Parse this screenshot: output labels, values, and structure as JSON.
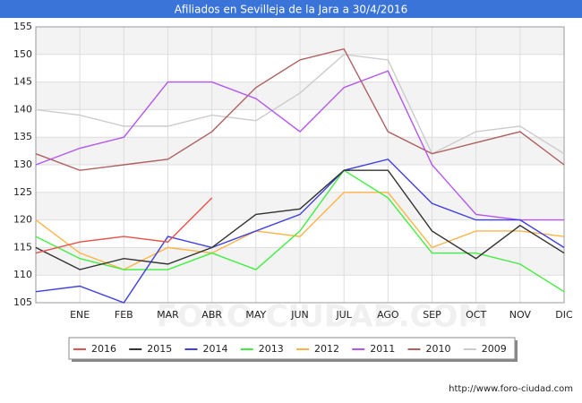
{
  "chart_data": {
    "type": "line",
    "title": "Afiliados en Sevilleja de la Jara a 30/4/2016",
    "categories": [
      null,
      "ENE",
      "FEB",
      "MAR",
      "ABR",
      "MAY",
      "JUN",
      "JUL",
      "AGO",
      "SEP",
      "OCT",
      "NOV",
      "DIC"
    ],
    "series": [
      {
        "name": "2016",
        "color": "#e8524a",
        "values": [
          114,
          116,
          117,
          116,
          124,
          null,
          null,
          null,
          null,
          null,
          null,
          null,
          null
        ]
      },
      {
        "name": "2015",
        "color": "#333333",
        "values": [
          115,
          111,
          113,
          112,
          115,
          121,
          122,
          129,
          129,
          118,
          113,
          119,
          114
        ]
      },
      {
        "name": "2014",
        "color": "#4040e0",
        "values": [
          107,
          108,
          105,
          117,
          115,
          118,
          121,
          129,
          131,
          123,
          120,
          120,
          115
        ]
      },
      {
        "name": "2013",
        "color": "#40ee40",
        "values": [
          117,
          113,
          111,
          111,
          114,
          111,
          118,
          129,
          124,
          114,
          114,
          112,
          107
        ]
      },
      {
        "name": "2012",
        "color": "#ffb347",
        "values": [
          120,
          114,
          111,
          115,
          114,
          118,
          117,
          125,
          125,
          115,
          118,
          118,
          117
        ]
      },
      {
        "name": "2011",
        "color": "#b455ee",
        "values": [
          130,
          133,
          135,
          145,
          145,
          142,
          136,
          144,
          147,
          130,
          121,
          120,
          120
        ]
      },
      {
        "name": "2010",
        "color": "#b06060",
        "values": [
          132,
          129,
          130,
          131,
          136,
          144,
          149,
          151,
          136,
          132,
          134,
          136,
          130
        ]
      },
      {
        "name": "2009",
        "color": "#cccccc",
        "values": [
          140,
          139,
          137,
          137,
          139,
          138,
          143,
          150,
          149,
          132,
          136,
          137,
          132
        ]
      }
    ],
    "ylim": [
      105,
      155
    ],
    "yticks": [
      105,
      110,
      115,
      120,
      125,
      130,
      135,
      140,
      145,
      150,
      155
    ],
    "grid": true,
    "watermark": "FORO-CIUDAD.COM",
    "source": "http://www.foro-ciudad.com"
  }
}
